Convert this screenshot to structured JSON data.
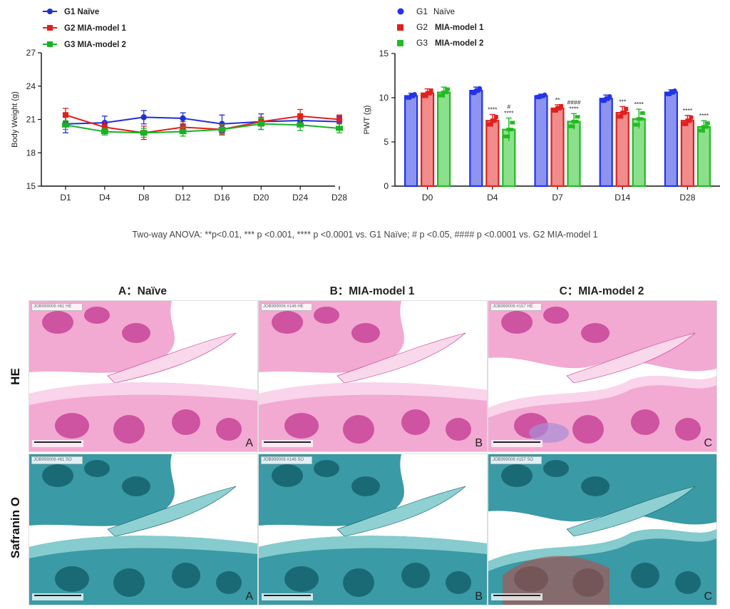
{
  "chart_data": [
    {
      "type": "line",
      "categories": [
        "D1",
        "D4",
        "D8",
        "D12",
        "D16",
        "D20",
        "D24",
        "D28"
      ],
      "ylabel": "Body Weight (g)",
      "ylim": [
        15,
        27
      ],
      "yticks": [
        "15",
        "18",
        "21",
        "24",
        "27"
      ],
      "legend_position": "top-left",
      "series": [
        {
          "name": "G1 Naïve",
          "values": [
            20.6,
            20.7,
            21.2,
            21.1,
            20.6,
            20.8,
            20.9,
            20.8
          ],
          "err": [
            0.8,
            0.6,
            0.6,
            0.5,
            0.8,
            0.7,
            0.5,
            0.5
          ],
          "color": "#1f2fd6"
        },
        {
          "name": "G2 MIA-model 1",
          "values": [
            21.4,
            20.3,
            19.8,
            20.3,
            20.1,
            20.8,
            21.3,
            21.0
          ],
          "err": [
            0.6,
            0.5,
            0.6,
            0.5,
            0.5,
            0.4,
            0.6,
            0.4
          ],
          "color": "#e0201c"
        },
        {
          "name": "G3 MIA-model 2",
          "values": [
            20.5,
            19.9,
            19.8,
            19.9,
            20.1,
            20.6,
            20.5,
            20.2
          ],
          "err": [
            0.4,
            0.3,
            0.4,
            0.4,
            0.4,
            0.5,
            0.5,
            0.4
          ],
          "color": "#18b324"
        }
      ]
    },
    {
      "type": "bar",
      "categories": [
        "D0",
        "D4",
        "D7",
        "D14",
        "D28"
      ],
      "ylabel": "PWT (g)",
      "ylim": [
        0,
        15
      ],
      "yticks": [
        "0",
        "5",
        "10",
        "15"
      ],
      "legend_position": "top-left",
      "series": [
        {
          "name": "G1 Naïve",
          "values": [
            10.2,
            10.8,
            10.2,
            9.9,
            10.6
          ],
          "err": [
            0.3,
            0.4,
            0.2,
            0.4,
            0.3
          ],
          "color": "#2233e8",
          "fill": "#8c94f0"
        },
        {
          "name": "G2 MIA-model 1",
          "values": [
            10.5,
            7.4,
            8.8,
            8.3,
            7.4
          ],
          "err": [
            0.5,
            0.7,
            0.4,
            0.7,
            0.6
          ],
          "color": "#e02020",
          "fill": "#f08c8c"
        },
        {
          "name": "G3 MIA-model 2",
          "values": [
            10.6,
            6.4,
            7.3,
            7.6,
            6.7
          ],
          "err": [
            0.6,
            1.3,
            0.9,
            1.1,
            0.7
          ],
          "color": "#22bb22",
          "fill": "#8ce08c"
        }
      ],
      "annotations": [
        {
          "category": "D4",
          "series": 1,
          "text": "****"
        },
        {
          "category": "D4",
          "series": 2,
          "text": "#"
        },
        {
          "category": "D4",
          "series": 2,
          "text": "****"
        },
        {
          "category": "D7",
          "series": 1,
          "text": "**"
        },
        {
          "category": "D7",
          "series": 2,
          "text": "####"
        },
        {
          "category": "D7",
          "series": 2,
          "text": "****"
        },
        {
          "category": "D14",
          "series": 1,
          "text": "***"
        },
        {
          "category": "D14",
          "series": 2,
          "text": "****"
        },
        {
          "category": "D28",
          "series": 1,
          "text": "****"
        },
        {
          "category": "D28",
          "series": 2,
          "text": "****"
        }
      ]
    }
  ],
  "caption": "Two-way ANOVA: **p<0.01, *** p <0.001, **** p <0.0001 vs. G1 Naïve; # p <0.05,  #### p <0.0001 vs. G2 MIA-model 1",
  "figure": {
    "columns": [
      "A：Naïve",
      "B：MIA-model 1",
      "C：MIA-model 2"
    ],
    "rows": [
      "HE",
      "Safranin O"
    ],
    "panel_letters": [
      "A",
      "B",
      "C"
    ],
    "slide_ids": [
      "JOB999006 #61 HE",
      "JOB999006 #146 HE",
      "JOB999006 #157 HE",
      "JOB999006 #61 SO",
      "JOB999006 #146 SO",
      "JOB999006 #157 SO"
    ],
    "colors": {
      "he_bg": "#f2a9d2",
      "he_dark": "#c2378f",
      "he_light": "#f9d8ec",
      "so_bg": "#3a9aa6",
      "so_dark": "#105a66",
      "so_light": "#8fd0d2",
      "so_red": "#c0453f"
    }
  }
}
